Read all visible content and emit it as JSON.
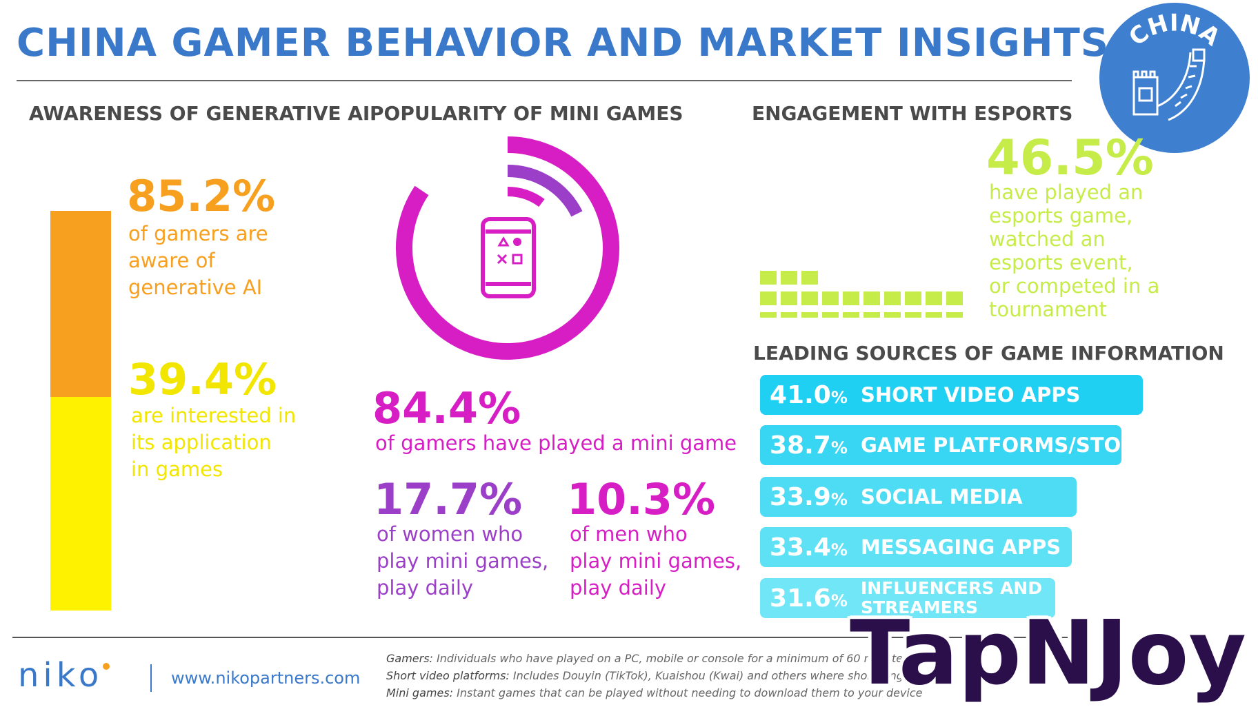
{
  "header": {
    "title": "CHINA GAMER BEHAVIOR AND MARKET INSIGHTS",
    "badge_text": "CHINA"
  },
  "sections": {
    "ai": "AWARENESS OF GENERATIVE AI",
    "mini": "POPULARITY OF MINI GAMES",
    "esports": "ENGAGEMENT WITH ESPORTS",
    "sources": "LEADING SOURCES OF GAME INFORMATION"
  },
  "ai": {
    "aware_value": "85.2%",
    "aware_desc": [
      "of gamers are",
      "aware of",
      "generative AI"
    ],
    "interested_value": "39.4%",
    "interested_desc": [
      "are interested in",
      "its application",
      "in games"
    ]
  },
  "mini": {
    "played_value": "84.4%",
    "played_desc": "of gamers have played a mini game",
    "women_value": "17.7%",
    "women_desc": [
      "of women who",
      "play mini games,",
      "play daily"
    ],
    "men_value": "10.3%",
    "men_desc": [
      "of men who",
      "play mini games,",
      "play daily"
    ]
  },
  "esports": {
    "value": "46.5%",
    "desc": [
      "have played an",
      "esports game,",
      "watched an",
      "esports event,",
      "or competed in a",
      "tournament"
    ]
  },
  "sources": [
    {
      "pct": "41.0",
      "label": "SHORT VIDEO APPS"
    },
    {
      "pct": "38.7",
      "label": "GAME PLATFORMS/STORES"
    },
    {
      "pct": "33.9",
      "label": "SOCIAL MEDIA"
    },
    {
      "pct": "33.4",
      "label": "MESSAGING APPS"
    },
    {
      "pct": "31.6",
      "label": "INFLUENCERS AND STREAMERS"
    }
  ],
  "footer": {
    "logo": "NIKO",
    "url": "www.nikopartners.com",
    "notes": [
      {
        "term": "Gamers:",
        "text": " Individuals who have played on a PC, mobile or console for a minimum of 60 minutes, in"
      },
      {
        "term": "Short video platforms:",
        "text": " Includes Douyin (TikTok), Kuaishou (Kwai) and others where short length"
      },
      {
        "term": "Mini games:",
        "text": " Instant games that can be played without needing to download them to your device"
      }
    ]
  },
  "watermark": "TapNJoy",
  "colors": {
    "title": "#3a78c9",
    "ai_aware": "#f7a020",
    "ai_interested": "#fff200",
    "mini_ring": "#d61ec4",
    "women": "#9b3fc8",
    "esports": "#c6ec4a",
    "source_bars": [
      "#1fd0f2",
      "#38d6f3",
      "#4edcf4",
      "#5ee1f5",
      "#70e6f6"
    ]
  },
  "chart_data": [
    {
      "type": "bar",
      "title": "AWARENESS OF GENERATIVE AI",
      "orientation": "vertical-stacked",
      "categories": [
        "aware of generative AI",
        "interested in its application in games"
      ],
      "values": [
        85.2,
        39.4
      ],
      "unit": "%"
    },
    {
      "type": "pie",
      "title": "POPULARITY OF MINI GAMES",
      "style": "concentric-rings",
      "series": [
        {
          "name": "played a mini game",
          "value": 84.4
        },
        {
          "name": "women who play mini games, play daily",
          "value": 17.7
        },
        {
          "name": "men who play mini games, play daily",
          "value": 10.3
        }
      ],
      "unit": "%"
    },
    {
      "type": "bar",
      "title": "ENGAGEMENT WITH ESPORTS",
      "style": "waffle",
      "values": [
        46.5
      ],
      "unit": "%"
    },
    {
      "type": "bar",
      "title": "LEADING SOURCES OF GAME INFORMATION",
      "orientation": "horizontal",
      "categories": [
        "SHORT VIDEO APPS",
        "GAME PLATFORMS/STORES",
        "SOCIAL MEDIA",
        "MESSAGING APPS",
        "INFLUENCERS AND STREAMERS"
      ],
      "values": [
        41.0,
        38.7,
        33.9,
        33.4,
        31.6
      ],
      "unit": "%"
    }
  ]
}
